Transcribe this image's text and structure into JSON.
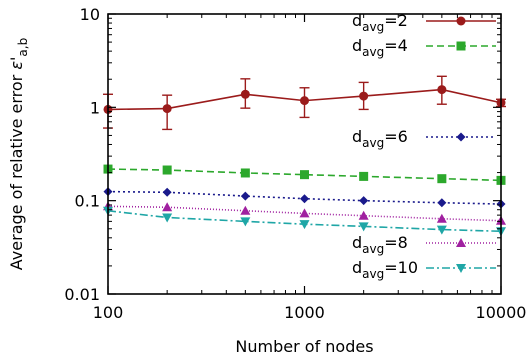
{
  "chart_data": {
    "type": "line",
    "title": "",
    "xlabel": "Number of nodes",
    "ylabel_parts": {
      "prefix": "Average of relative error ",
      "symbol": "ε",
      "prime": "'",
      "subscript": "a,b"
    },
    "xscale": "log",
    "yscale": "log",
    "xlim": [
      100,
      10000
    ],
    "ylim": [
      0.01,
      10
    ],
    "grid": false,
    "xticks": [
      {
        "value": 100,
        "label": "100"
      },
      {
        "value": 1000,
        "label": "1000"
      },
      {
        "value": 10000,
        "label": "10000"
      }
    ],
    "yticks": [
      {
        "value": 0.01,
        "label": "0.01"
      },
      {
        "value": 0.1,
        "label": "0.1"
      },
      {
        "value": 1,
        "label": "1"
      },
      {
        "value": 10,
        "label": "10"
      }
    ],
    "x": [
      100,
      200,
      500,
      1000,
      2000,
      5000,
      10000
    ],
    "series": [
      {
        "key": "davg-2",
        "name_base": "d",
        "name_sub": "avg",
        "name_suffix": "=2",
        "color": "#9b1b1b",
        "marker": "circle",
        "dash": "",
        "values": [
          0.95,
          0.97,
          1.38,
          1.18,
          1.32,
          1.55,
          1.12
        ],
        "err_low": [
          0.6,
          0.58,
          0.98,
          0.78,
          0.95,
          1.08,
          1.02
        ],
        "err_high": [
          1.38,
          1.35,
          2.02,
          1.62,
          1.85,
          2.15,
          1.22
        ]
      },
      {
        "key": "davg-4",
        "name_base": "d",
        "name_sub": "avg",
        "name_suffix": "=4",
        "color": "#2ca82c",
        "marker": "square",
        "dash": "7,4",
        "values": [
          0.218,
          0.213,
          0.198,
          0.19,
          0.182,
          0.172,
          0.165
        ]
      },
      {
        "key": "davg-6",
        "name_base": "d",
        "name_sub": "avg",
        "name_suffix": "=6",
        "color": "#1a1a8c",
        "marker": "diamond",
        "dash": "2,3",
        "values": [
          0.125,
          0.123,
          0.112,
          0.105,
          0.1,
          0.095,
          0.092
        ]
      },
      {
        "key": "davg-8",
        "name_base": "d",
        "name_sub": "avg",
        "name_suffix": "=8",
        "color": "#a020a0",
        "marker": "triangle-up",
        "dash": "1,2",
        "values": [
          0.087,
          0.085,
          0.078,
          0.073,
          0.069,
          0.064,
          0.061
        ]
      },
      {
        "key": "davg-10",
        "name_base": "d",
        "name_sub": "avg",
        "name_suffix": "=10",
        "color": "#1fa6a6",
        "marker": "triangle-down",
        "dash": "8,3,2,3",
        "values": [
          0.078,
          0.066,
          0.06,
          0.056,
          0.053,
          0.049,
          0.047
        ]
      }
    ],
    "legend_groups": [
      {
        "placement": "top-right",
        "keys": [
          "davg-2",
          "davg-4"
        ]
      },
      {
        "placement": "middle-right",
        "keys": [
          "davg-6"
        ]
      },
      {
        "placement": "bottom-right",
        "keys": [
          "davg-8",
          "davg-10"
        ]
      }
    ]
  }
}
